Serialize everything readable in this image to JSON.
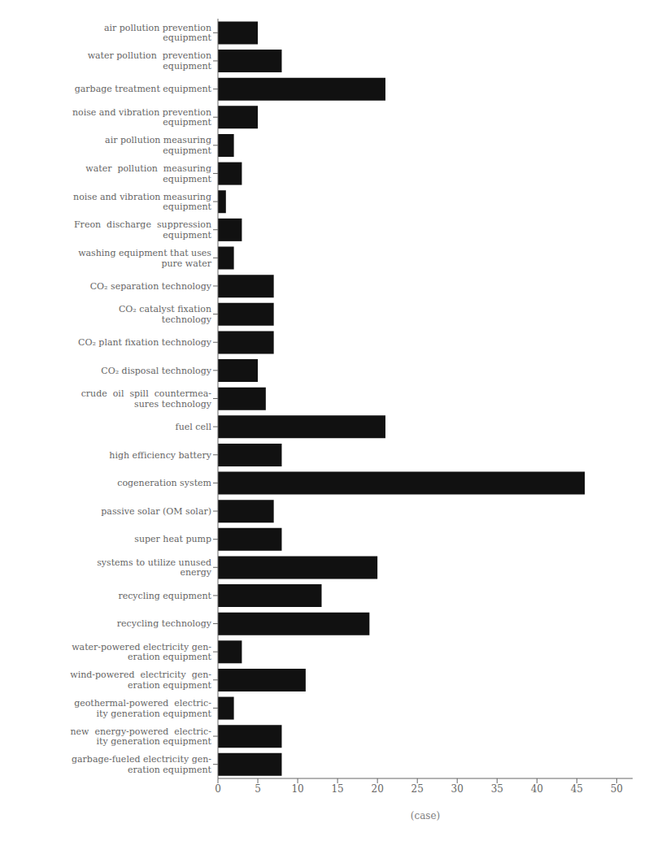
{
  "chart_data": {
    "type": "bar",
    "orientation": "horizontal",
    "xlabel": "(case)",
    "categories": [
      "air pollution prevention\nequipment",
      "water pollution  prevention\nequipment",
      "garbage treatment equipment",
      "noise and vibration prevention\nequipment",
      "    air pollution measuring\n    equipment",
      "water  pollution  measuring\nequipment",
      "noise and vibration measuring\nequipment",
      "Freon  discharge  suppression\nequipment",
      "washing equipment that uses\npure water",
      "CO₂ separation technology",
      "    CO₂ catalyst fixation\n    technology",
      "CO₂ plant fixation technology",
      "    CO₂ disposal technology",
      "crude  oil  spill  countermea-\nsures technology",
      "fuel cell",
      "high efficiency battery",
      "cogeneration system",
      "passive solar (OM solar)",
      "super heat pump",
      "systems to utilize unused\nenergy",
      "recycling equipment",
      "recycling technology",
      "water-powered electricity gen-\neration equipment",
      "wind-powered  electricity  gen-\neration equipment",
      "geothermal-powered  electric-\nity generation equipment",
      "new  energy-powered  electric-\nity generation equipment",
      "garbage-fueled electricity gen-\neration equipment"
    ],
    "values": [
      5,
      8,
      21,
      5,
      2,
      3,
      1,
      3,
      2,
      7,
      7,
      7,
      5,
      6,
      21,
      8,
      46,
      7,
      8,
      20,
      13,
      19,
      3,
      11,
      2,
      8,
      8
    ],
    "color": "#111111",
    "xlim": [
      0,
      52
    ],
    "xticks": [
      0,
      5,
      10,
      15,
      20,
      25,
      30,
      35,
      40,
      45,
      50
    ],
    "grid": false
  }
}
